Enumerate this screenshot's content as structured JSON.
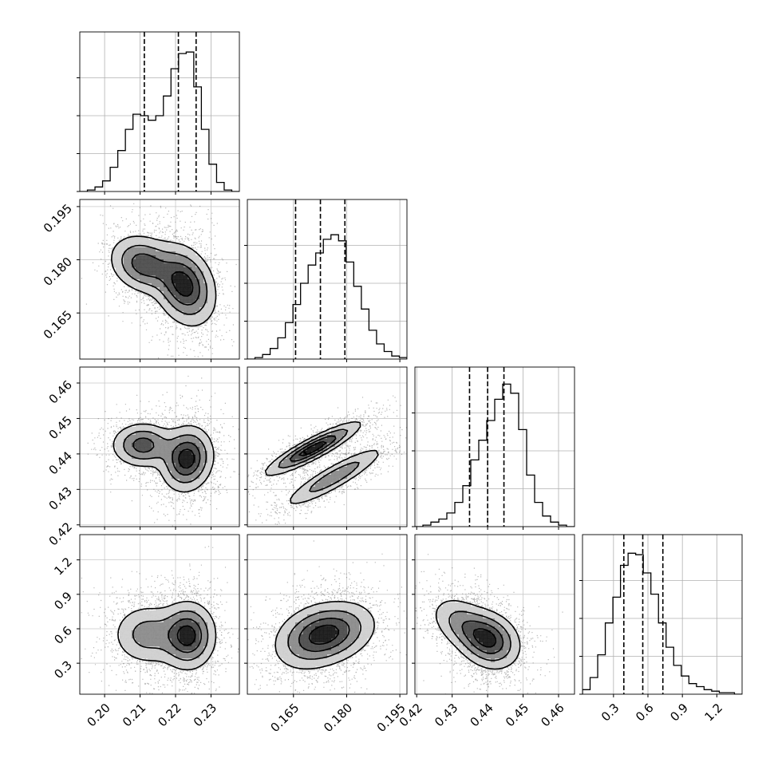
{
  "chart_data": {
    "type": "corner",
    "n_params": 4,
    "params": [
      {
        "range": [
          0.193,
          0.238
        ],
        "ticks": [
          "0.20",
          "0.21",
          "0.22",
          "0.23"
        ],
        "tick_values": [
          0.2,
          0.21,
          0.22,
          0.23
        ],
        "quantiles": [
          0.2112,
          0.2208,
          0.2258
        ],
        "hist": [
          0,
          1,
          3,
          7,
          16,
          27,
          41,
          51,
          50,
          47,
          50,
          63,
          81,
          91,
          92,
          69,
          41,
          18,
          6,
          1,
          0
        ],
        "hist_max": 100
      },
      {
        "range": [
          0.152,
          0.197
        ],
        "ticks": [
          "0.165",
          "0.180",
          "0.195"
        ],
        "tick_values": [
          0.165,
          0.18,
          0.195
        ],
        "quantiles": [
          0.1656,
          0.1726,
          0.1795
        ],
        "hist": [
          0,
          1,
          3,
          7,
          14,
          24,
          36,
          50,
          62,
          70,
          79,
          82,
          78,
          64,
          48,
          33,
          19,
          10,
          5,
          2,
          1
        ],
        "hist_max": 100
      },
      {
        "range": [
          0.4195,
          0.4645
        ],
        "ticks": [
          "0.42",
          "0.43",
          "0.44",
          "0.45",
          "0.46"
        ],
        "tick_values": [
          0.42,
          0.43,
          0.44,
          0.45,
          0.46
        ],
        "quantiles": [
          0.4349,
          0.44,
          0.4446
        ],
        "hist": [
          0,
          1,
          3,
          5,
          9,
          16,
          27,
          44,
          57,
          70,
          84,
          94,
          88,
          64,
          34,
          16,
          7,
          3,
          1,
          0
        ],
        "hist_max": 100
      },
      {
        "range": [
          0.03,
          1.42
        ],
        "ticks": [
          "0.3",
          "0.6",
          "0.9",
          "1.2"
        ],
        "tick_values": [
          0.3,
          0.6,
          0.9,
          1.2
        ],
        "quantiles": [
          0.39,
          0.555,
          0.73
        ],
        "hist": [
          3,
          11,
          26,
          47,
          64,
          85,
          93,
          92,
          80,
          66,
          47,
          31,
          19,
          12,
          7,
          5,
          3,
          2,
          1,
          1,
          0
        ],
        "hist_max": 100
      }
    ],
    "pairs": [
      {
        "x": 0,
        "y": 1,
        "mixture": [
          {
            "w": 0.62,
            "mx": 0.2225,
            "my": 0.1728,
            "sx": 0.0045,
            "sy": 0.0058,
            "r": -0.25
          },
          {
            "w": 0.38,
            "mx": 0.2108,
            "my": 0.1788,
            "sx": 0.0048,
            "sy": 0.0042,
            "r": -0.2
          }
        ]
      },
      {
        "x": 0,
        "y": 2,
        "mixture": [
          {
            "w": 0.62,
            "mx": 0.2232,
            "my": 0.4386,
            "sx": 0.0038,
            "sy": 0.0047,
            "r": 0.1
          },
          {
            "w": 0.38,
            "mx": 0.2108,
            "my": 0.4425,
            "sx": 0.0045,
            "sy": 0.0032,
            "r": 0.0
          }
        ]
      },
      {
        "x": 1,
        "y": 2,
        "mixture": [
          {
            "w": 0.58,
            "mx": 0.1705,
            "my": 0.4415,
            "sx": 0.0068,
            "sy": 0.0038,
            "r": 0.9
          },
          {
            "w": 0.42,
            "mx": 0.1765,
            "my": 0.4335,
            "sx": 0.0075,
            "sy": 0.0045,
            "r": 0.9
          }
        ]
      },
      {
        "x": 0,
        "y": 3,
        "mixture": [
          {
            "w": 0.62,
            "mx": 0.2235,
            "my": 0.54,
            "sx": 0.004,
            "sy": 0.15,
            "r": 0.0
          },
          {
            "w": 0.38,
            "mx": 0.212,
            "my": 0.55,
            "sx": 0.0052,
            "sy": 0.14,
            "r": 0.0
          }
        ]
      },
      {
        "x": 1,
        "y": 3,
        "mixture": [
          {
            "w": 0.55,
            "mx": 0.1768,
            "my": 0.57,
            "sx": 0.0062,
            "sy": 0.14,
            "r": 0.25
          },
          {
            "w": 0.45,
            "mx": 0.1698,
            "my": 0.52,
            "sx": 0.0058,
            "sy": 0.15,
            "r": 0.25
          }
        ]
      },
      {
        "x": 2,
        "y": 3,
        "mixture": [
          {
            "w": 0.65,
            "mx": 0.4405,
            "my": 0.5,
            "sx": 0.0045,
            "sy": 0.13,
            "r": -0.2
          },
          {
            "w": 0.35,
            "mx": 0.433,
            "my": 0.64,
            "sx": 0.0048,
            "sy": 0.13,
            "r": -0.4
          }
        ]
      }
    ]
  }
}
